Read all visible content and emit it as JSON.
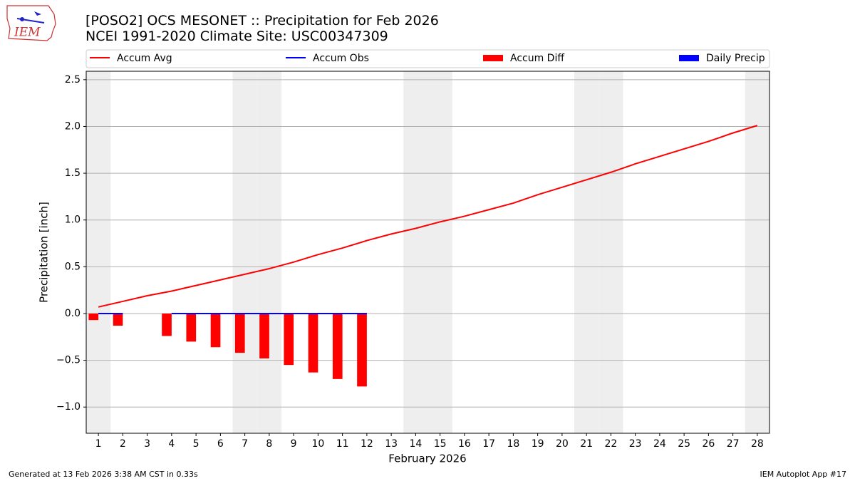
{
  "logo_text": "IEM",
  "footer_left": "Generated at 13 Feb 2026 3:38 AM CST in 0.33s",
  "footer_right": "IEM Autoplot App #17",
  "chart_data": {
    "type": "line",
    "title": "[POSO2] OCS MESONET :: Precipitation for Feb 2026",
    "subtitle": "NCEI 1991-2020 Climate Site: USC00347309",
    "xlabel": "February 2026",
    "ylabel": "Precipitation [inch]",
    "x": [
      1,
      2,
      3,
      4,
      5,
      6,
      7,
      8,
      9,
      10,
      11,
      12,
      13,
      14,
      15,
      16,
      17,
      18,
      19,
      20,
      21,
      22,
      23,
      24,
      25,
      26,
      27,
      28
    ],
    "xlim": [
      0.5,
      28.5
    ],
    "xticks": [
      1,
      2,
      3,
      4,
      5,
      6,
      7,
      8,
      9,
      10,
      11,
      12,
      13,
      14,
      15,
      16,
      17,
      18,
      19,
      20,
      21,
      22,
      23,
      24,
      25,
      26,
      27,
      28
    ],
    "ylim": [
      -1.28,
      2.59
    ],
    "yticks": [
      {
        "value": -1,
        "label": "−1.0"
      },
      {
        "value": -0.5,
        "label": "−0.5"
      },
      {
        "value": 0,
        "label": "0.0"
      },
      0.5,
      {
        "value": 1,
        "label": "1.0"
      },
      1.5,
      {
        "value": 2,
        "label": "2.0"
      },
      2.5
    ],
    "grid": true,
    "highlight_days": [
      1,
      7,
      8,
      14,
      15,
      21,
      22,
      28
    ],
    "highlight_color": "#eeeeee",
    "series": [
      {
        "name": "Accum Avg",
        "kind": "line",
        "color": "#ff0000",
        "values": [
          0.07,
          0.13,
          0.19,
          0.24,
          0.3,
          0.36,
          0.42,
          0.48,
          0.55,
          0.63,
          0.7,
          0.78,
          0.85,
          0.91,
          0.98,
          1.04,
          1.11,
          1.18,
          1.27,
          1.35,
          1.43,
          1.51,
          1.6,
          1.68,
          1.76,
          1.84,
          1.93,
          2.01
        ]
      },
      {
        "name": "Accum Obs",
        "kind": "line",
        "color": "#0000ff",
        "values": [
          0,
          0,
          null,
          0,
          0,
          0,
          0,
          0,
          0,
          0,
          0,
          0,
          null,
          null,
          null,
          null,
          null,
          null,
          null,
          null,
          null,
          null,
          null,
          null,
          null,
          null,
          null,
          null
        ]
      },
      {
        "name": "Accum Diff",
        "kind": "bar",
        "color": "#ff0000",
        "values": [
          -0.07,
          -0.13,
          null,
          -0.24,
          -0.3,
          -0.36,
          -0.42,
          -0.48,
          -0.55,
          -0.63,
          -0.7,
          -0.78,
          null,
          null,
          null,
          null,
          null,
          null,
          null,
          null,
          null,
          null,
          null,
          null,
          null,
          null,
          null,
          null
        ]
      },
      {
        "name": "Daily Precip",
        "kind": "bar",
        "color": "#0000ff",
        "values": [
          0,
          0,
          null,
          0,
          0,
          0,
          0,
          0,
          0,
          0,
          0,
          0,
          null,
          null,
          null,
          null,
          null,
          null,
          null,
          null,
          null,
          null,
          null,
          null,
          null,
          null,
          null,
          null
        ]
      }
    ]
  }
}
